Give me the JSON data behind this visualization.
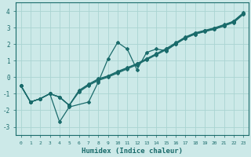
{
  "xlabel": "Humidex (Indice chaleur)",
  "xlim": [
    -0.5,
    23.5
  ],
  "ylim": [
    -3.5,
    4.5
  ],
  "yticks": [
    -3,
    -2,
    -1,
    0,
    1,
    2,
    3,
    4
  ],
  "xticks": [
    0,
    1,
    2,
    3,
    4,
    5,
    6,
    7,
    8,
    9,
    10,
    11,
    12,
    13,
    14,
    15,
    16,
    17,
    18,
    19,
    20,
    21,
    22,
    23
  ],
  "bg_color": "#cce9e8",
  "grid_color": "#aad4d2",
  "line_color": "#1a6b6b",
  "series1_x": [
    0,
    1,
    2,
    3,
    4,
    5,
    7,
    8,
    9,
    10,
    11,
    12,
    13,
    14,
    15,
    16,
    17,
    18,
    19,
    20,
    21,
    22,
    23
  ],
  "series1_y": [
    -0.5,
    -1.5,
    -1.3,
    -1.0,
    -2.7,
    -1.8,
    -1.5,
    -0.3,
    1.1,
    2.1,
    1.7,
    0.45,
    1.5,
    1.7,
    1.6,
    2.0,
    2.4,
    2.6,
    2.8,
    2.9,
    3.1,
    3.4,
    3.9
  ],
  "series2_x": [
    0,
    1,
    2,
    3,
    4,
    5,
    6,
    7,
    8,
    9,
    10,
    11,
    12,
    13,
    14,
    15,
    16,
    17,
    18,
    19,
    20,
    21,
    22,
    23
  ],
  "series2_y": [
    -0.5,
    -1.5,
    -1.3,
    -1.0,
    -1.2,
    -1.7,
    -0.9,
    -0.5,
    -0.2,
    0.0,
    0.25,
    0.5,
    0.75,
    1.05,
    1.35,
    1.65,
    2.0,
    2.35,
    2.6,
    2.75,
    2.9,
    3.1,
    3.3,
    3.8
  ],
  "series3_x": [
    0,
    1,
    2,
    3,
    4,
    5,
    6,
    7,
    8,
    9,
    10,
    11,
    12,
    13,
    14,
    15,
    16,
    17,
    18,
    19,
    20,
    21,
    22,
    23
  ],
  "series3_y": [
    -0.5,
    -1.5,
    -1.3,
    -1.0,
    -1.2,
    -1.7,
    -0.85,
    -0.45,
    -0.15,
    0.05,
    0.3,
    0.55,
    0.8,
    1.1,
    1.4,
    1.7,
    2.05,
    2.4,
    2.65,
    2.8,
    2.95,
    3.15,
    3.35,
    3.85
  ],
  "series4_x": [
    0,
    1,
    2,
    3,
    4,
    5,
    6,
    7,
    8,
    9,
    10,
    11,
    12,
    13,
    14,
    15,
    16,
    17,
    18,
    19,
    20,
    21,
    22,
    23
  ],
  "series4_y": [
    -0.5,
    -1.5,
    -1.3,
    -1.0,
    -1.2,
    -1.7,
    -0.8,
    -0.42,
    -0.1,
    0.08,
    0.35,
    0.58,
    0.82,
    1.12,
    1.42,
    1.72,
    2.08,
    2.43,
    2.68,
    2.83,
    2.98,
    3.18,
    3.38,
    3.88
  ]
}
